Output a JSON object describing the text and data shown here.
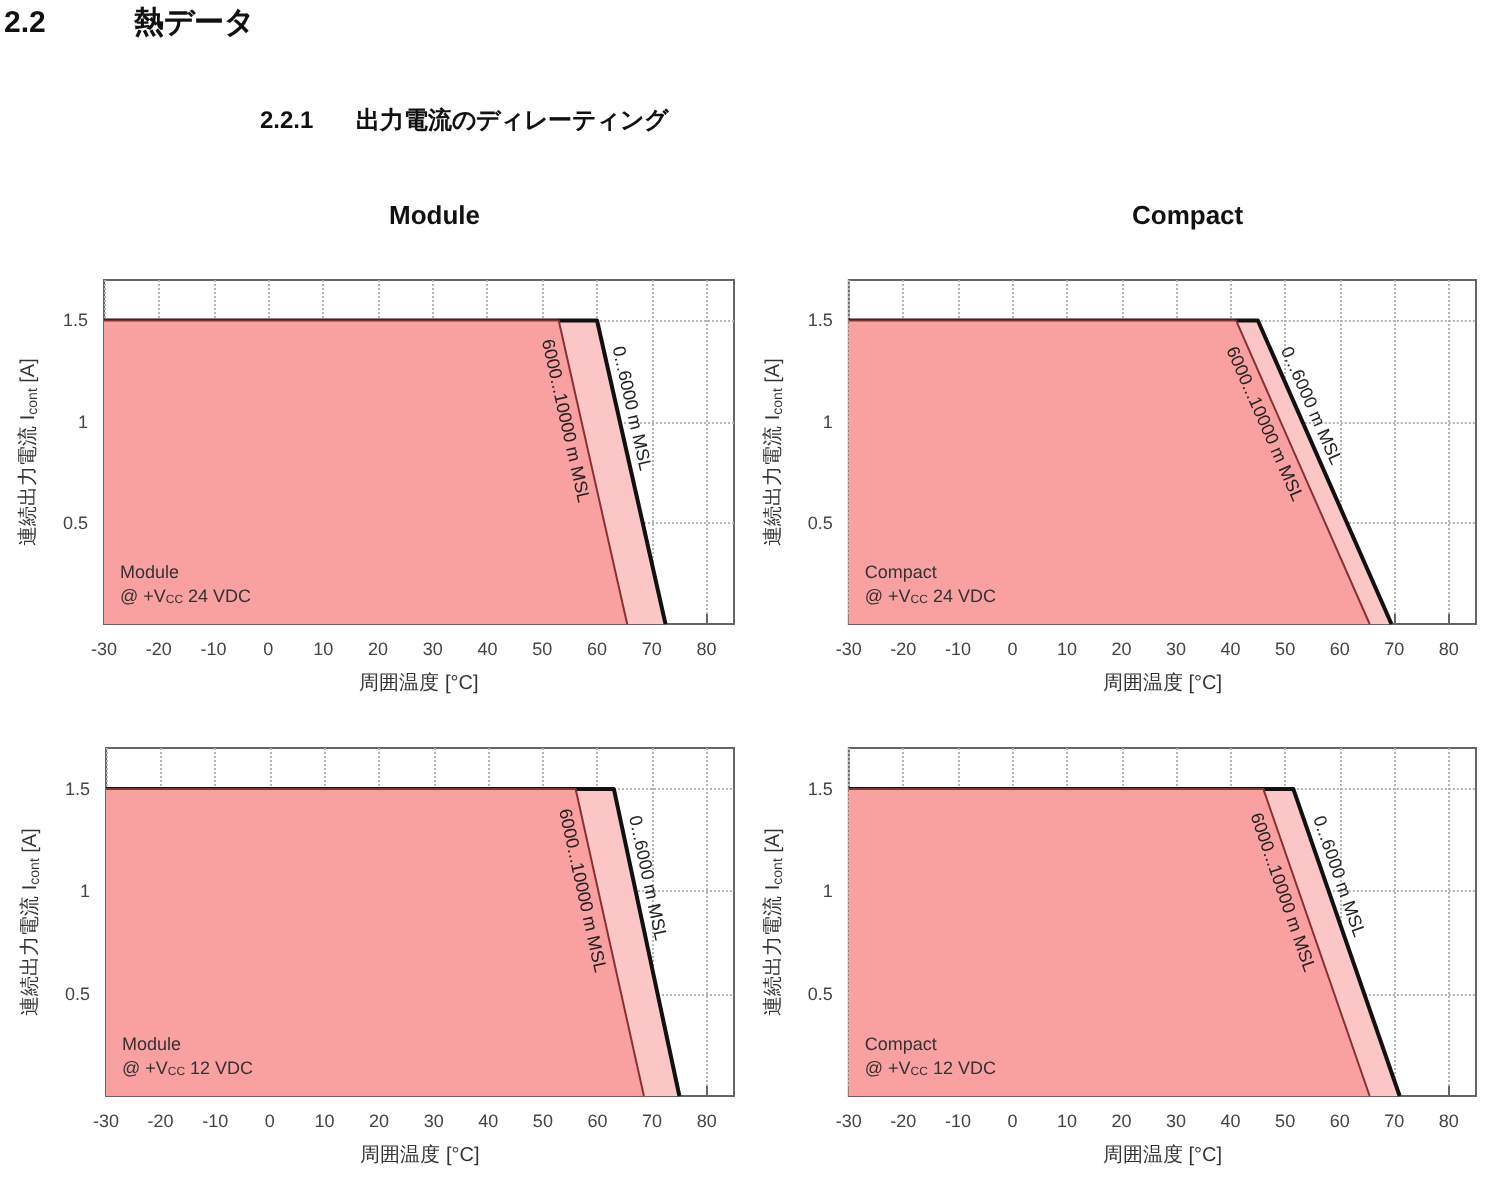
{
  "chart_data": [
    {
      "type": "other",
      "title": "2.2 熱データ",
      "subtitle": "2.2.1 出力電流のディレーティング"
    },
    {
      "type": "area",
      "title": "Module",
      "xlabel": "周囲温度 [°C]",
      "ylabel": "連続出力電流 I$_{cont}$ [A]",
      "xlim": [
        -30,
        85
      ],
      "xticks": [
        -30,
        -20,
        -10,
        0,
        10,
        20,
        30,
        40,
        50,
        60,
        70,
        80
      ],
      "ylim": [
        0,
        1.7
      ],
      "yticks": [
        0.5,
        1,
        1.5
      ],
      "grid": true,
      "legend": false,
      "annotations": [
        "Module\n@ +V$_{CC}$ 24 VDC"
      ],
      "series": [
        {
          "name": "0...6000 m MSL",
          "color": "#fbc6c6",
          "x": [
            -30,
            60,
            72.5
          ],
          "values": [
            1.5,
            1.5,
            0
          ]
        },
        {
          "name": "6000...10000 m MSL",
          "color": "#f9a0a0",
          "x": [
            -30,
            53,
            65.5
          ],
          "values": [
            1.5,
            1.5,
            0
          ]
        }
      ]
    },
    {
      "type": "area",
      "title": "Compact",
      "xlabel": "周囲温度 [°C]",
      "ylabel": "連続出力電流 I$_{cont}$ [A]",
      "xlim": [
        -30,
        85
      ],
      "xticks": [
        -30,
        -20,
        -10,
        0,
        10,
        20,
        30,
        40,
        50,
        60,
        70,
        80
      ],
      "ylim": [
        0,
        1.7
      ],
      "yticks": [
        0.5,
        1,
        1.5
      ],
      "grid": true,
      "legend": false,
      "annotations": [
        "Compact\n@ +V$_{CC}$ 24 VDC"
      ],
      "series": [
        {
          "name": "0...6000 m MSL",
          "color": "#fbc6c6",
          "x": [
            -30,
            45,
            69.5
          ],
          "values": [
            1.5,
            1.5,
            0
          ]
        },
        {
          "name": "6000...10000 m MSL",
          "color": "#f9a0a0",
          "x": [
            -30,
            41,
            65.5
          ],
          "values": [
            1.5,
            1.5,
            0
          ]
        }
      ]
    },
    {
      "type": "area",
      "xlabel": "周囲温度 [°C]",
      "ylabel": "連続出力電流 I$_{cont}$ [A]",
      "xlim": [
        -30,
        85
      ],
      "xticks": [
        -30,
        -20,
        -10,
        0,
        10,
        20,
        30,
        40,
        50,
        60,
        70,
        80
      ],
      "ylim": [
        0,
        1.7
      ],
      "yticks": [
        0.5,
        1,
        1.5
      ],
      "grid": true,
      "legend": false,
      "annotations": [
        "Module\n@ +V$_{CC}$ 12 VDC"
      ],
      "series": [
        {
          "name": "0...6000 m MSL",
          "color": "#fbc6c6",
          "x": [
            -30,
            63,
            75
          ],
          "values": [
            1.5,
            1.5,
            0
          ]
        },
        {
          "name": "6000...10000 m MSL",
          "color": "#f9a0a0",
          "x": [
            -30,
            56,
            68.5
          ],
          "values": [
            1.5,
            1.5,
            0
          ]
        }
      ]
    },
    {
      "type": "area",
      "xlabel": "周囲温度 [°C]",
      "ylabel": "連続出力電流 I$_{cont}$ [A]",
      "xlim": [
        -30,
        85
      ],
      "xticks": [
        -30,
        -20,
        -10,
        0,
        10,
        20,
        30,
        40,
        50,
        60,
        70,
        80
      ],
      "ylim": [
        0,
        1.7
      ],
      "yticks": [
        0.5,
        1,
        1.5
      ],
      "grid": true,
      "legend": false,
      "annotations": [
        "Compact\n@ +V$_{CC}$ 12 VDC"
      ],
      "series": [
        {
          "name": "0...6000 m MSL",
          "color": "#fbc6c6",
          "x": [
            -30,
            51.5,
            71
          ],
          "values": [
            1.5,
            1.5,
            0
          ]
        },
        {
          "name": "6000...10000 m MSL",
          "color": "#f9a0a0",
          "x": [
            -30,
            46,
            65.5
          ],
          "values": [
            1.5,
            1.5,
            0
          ]
        }
      ]
    }
  ]
}
